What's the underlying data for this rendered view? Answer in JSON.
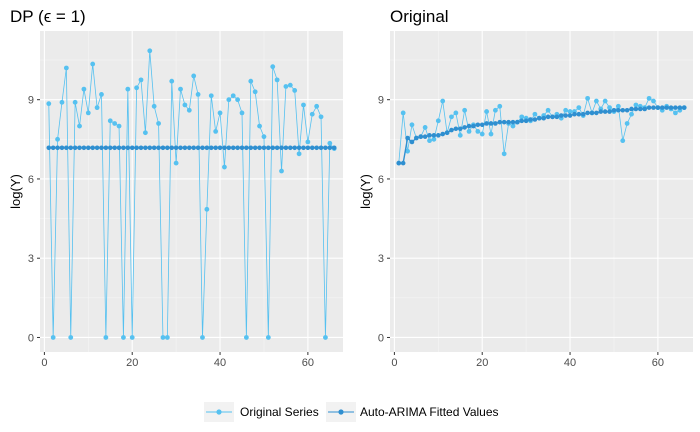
{
  "chart_data": [
    {
      "type": "line",
      "title": "DP (ϵ = 1)",
      "xlabel": "",
      "ylabel": "log(Y)",
      "xlim": [
        -1,
        68
      ],
      "ylim": [
        -0.55,
        11.6
      ],
      "xticks": [
        0,
        20,
        40,
        60
      ],
      "yticks": [
        0,
        3,
        6,
        9
      ],
      "grid": true,
      "series": [
        {
          "name": "Original Series",
          "color": "#56c1f0",
          "x": [
            1,
            2,
            3,
            4,
            5,
            6,
            7,
            8,
            9,
            10,
            11,
            12,
            13,
            14,
            15,
            16,
            17,
            18,
            19,
            20,
            21,
            22,
            23,
            24,
            25,
            26,
            27,
            28,
            29,
            30,
            31,
            32,
            33,
            34,
            35,
            36,
            37,
            38,
            39,
            40,
            41,
            42,
            43,
            44,
            45,
            46,
            47,
            48,
            49,
            50,
            51,
            52,
            53,
            54,
            55,
            56,
            57,
            58,
            59,
            60,
            61,
            62,
            63,
            64,
            65,
            66
          ],
          "y": [
            8.85,
            0.0,
            7.5,
            8.9,
            10.2,
            0.0,
            8.9,
            8.0,
            9.4,
            8.5,
            10.35,
            8.7,
            9.2,
            0.0,
            8.2,
            8.1,
            8.0,
            0.0,
            9.4,
            0.0,
            9.45,
            9.75,
            7.75,
            10.85,
            8.75,
            8.1,
            0.0,
            0.0,
            9.7,
            6.6,
            9.4,
            8.8,
            8.6,
            9.9,
            9.2,
            0.0,
            4.85,
            9.15,
            7.8,
            8.5,
            6.45,
            9.0,
            9.15,
            9.0,
            8.5,
            0.0,
            9.7,
            9.3,
            8.0,
            7.6,
            0.0,
            10.25,
            9.75,
            6.3,
            9.5,
            9.55,
            9.35,
            6.95,
            8.8,
            7.4,
            8.45,
            8.75,
            8.35,
            0.0,
            7.35,
            7.15
          ]
        },
        {
          "name": "Auto-ARIMA Fitted Values",
          "color": "#2f8fd0",
          "x": [
            1,
            2,
            3,
            4,
            5,
            6,
            7,
            8,
            9,
            10,
            11,
            12,
            13,
            14,
            15,
            16,
            17,
            18,
            19,
            20,
            21,
            22,
            23,
            24,
            25,
            26,
            27,
            28,
            29,
            30,
            31,
            32,
            33,
            34,
            35,
            36,
            37,
            38,
            39,
            40,
            41,
            42,
            43,
            44,
            45,
            46,
            47,
            48,
            49,
            50,
            51,
            52,
            53,
            54,
            55,
            56,
            57,
            58,
            59,
            60,
            61,
            62,
            63,
            64,
            65,
            66
          ],
          "y": [
            7.18,
            7.18,
            7.18,
            7.18,
            7.18,
            7.18,
            7.18,
            7.18,
            7.18,
            7.18,
            7.18,
            7.18,
            7.18,
            7.18,
            7.18,
            7.18,
            7.18,
            7.18,
            7.18,
            7.18,
            7.18,
            7.18,
            7.18,
            7.18,
            7.18,
            7.18,
            7.18,
            7.18,
            7.18,
            7.18,
            7.18,
            7.18,
            7.18,
            7.18,
            7.18,
            7.18,
            7.18,
            7.18,
            7.18,
            7.18,
            7.18,
            7.18,
            7.18,
            7.18,
            7.18,
            7.18,
            7.18,
            7.18,
            7.18,
            7.18,
            7.18,
            7.18,
            7.18,
            7.18,
            7.18,
            7.18,
            7.18,
            7.18,
            7.18,
            7.18,
            7.18,
            7.18,
            7.18,
            7.18,
            7.18,
            7.18
          ]
        }
      ]
    },
    {
      "type": "line",
      "title": "Original",
      "xlabel": "",
      "ylabel": "log(Y)",
      "xlim": [
        -1,
        68
      ],
      "ylim": [
        -0.55,
        11.6
      ],
      "xticks": [
        0,
        20,
        40,
        60
      ],
      "yticks": [
        0,
        3,
        6,
        9
      ],
      "grid": true,
      "series": [
        {
          "name": "Original Series",
          "color": "#56c1f0",
          "x": [
            1,
            2,
            3,
            4,
            5,
            6,
            7,
            8,
            9,
            10,
            11,
            12,
            13,
            14,
            15,
            16,
            17,
            18,
            19,
            20,
            21,
            22,
            23,
            24,
            25,
            26,
            27,
            28,
            29,
            30,
            31,
            32,
            33,
            34,
            35,
            36,
            37,
            38,
            39,
            40,
            41,
            42,
            43,
            44,
            45,
            46,
            47,
            48,
            49,
            50,
            51,
            52,
            53,
            54,
            55,
            56,
            57,
            58,
            59,
            60,
            61,
            62,
            63,
            64,
            65,
            66
          ],
          "y": [
            6.6,
            8.5,
            7.05,
            8.05,
            7.55,
            7.6,
            7.95,
            7.45,
            7.5,
            8.2,
            8.95,
            7.75,
            8.35,
            8.5,
            7.65,
            8.6,
            7.8,
            8.05,
            7.8,
            7.7,
            8.55,
            7.7,
            8.6,
            8.75,
            6.95,
            8.1,
            8.0,
            8.15,
            8.35,
            8.3,
            8.2,
            8.45,
            8.3,
            8.4,
            8.6,
            8.35,
            8.45,
            8.3,
            8.6,
            8.55,
            8.55,
            8.7,
            8.4,
            9.05,
            8.5,
            8.95,
            8.65,
            8.95,
            8.7,
            8.55,
            8.75,
            7.45,
            8.1,
            8.45,
            8.8,
            8.75,
            8.7,
            9.05,
            8.95,
            8.7,
            8.6,
            8.75,
            8.65,
            8.5,
            8.6,
            8.7
          ]
        },
        {
          "name": "Auto-ARIMA Fitted Values",
          "color": "#2f8fd0",
          "x": [
            1,
            2,
            3,
            4,
            5,
            6,
            7,
            8,
            9,
            10,
            11,
            12,
            13,
            14,
            15,
            16,
            17,
            18,
            19,
            20,
            21,
            22,
            23,
            24,
            25,
            26,
            27,
            28,
            29,
            30,
            31,
            32,
            33,
            34,
            35,
            36,
            37,
            38,
            39,
            40,
            41,
            42,
            43,
            44,
            45,
            46,
            47,
            48,
            49,
            50,
            51,
            52,
            53,
            54,
            55,
            56,
            57,
            58,
            59,
            60,
            61,
            62,
            63,
            64,
            65,
            66
          ],
          "y": [
            6.6,
            6.6,
            7.55,
            7.4,
            7.55,
            7.6,
            7.6,
            7.65,
            7.65,
            7.65,
            7.7,
            7.75,
            7.85,
            7.9,
            7.9,
            7.95,
            8.0,
            8.0,
            8.05,
            8.05,
            8.1,
            8.1,
            8.1,
            8.15,
            8.15,
            8.15,
            8.15,
            8.15,
            8.2,
            8.2,
            8.25,
            8.25,
            8.3,
            8.3,
            8.35,
            8.35,
            8.35,
            8.4,
            8.4,
            8.4,
            8.45,
            8.45,
            8.45,
            8.5,
            8.5,
            8.5,
            8.55,
            8.55,
            8.55,
            8.6,
            8.6,
            8.6,
            8.6,
            8.65,
            8.65,
            8.65,
            8.65,
            8.7,
            8.7,
            8.7,
            8.7,
            8.7,
            8.7,
            8.7,
            8.7,
            8.7
          ]
        }
      ]
    }
  ],
  "legend": {
    "position": "bottom",
    "items": [
      {
        "label": "Original Series",
        "color": "#56c1f0"
      },
      {
        "label": "Auto-ARIMA Fitted Values",
        "color": "#2f8fd0"
      }
    ]
  }
}
